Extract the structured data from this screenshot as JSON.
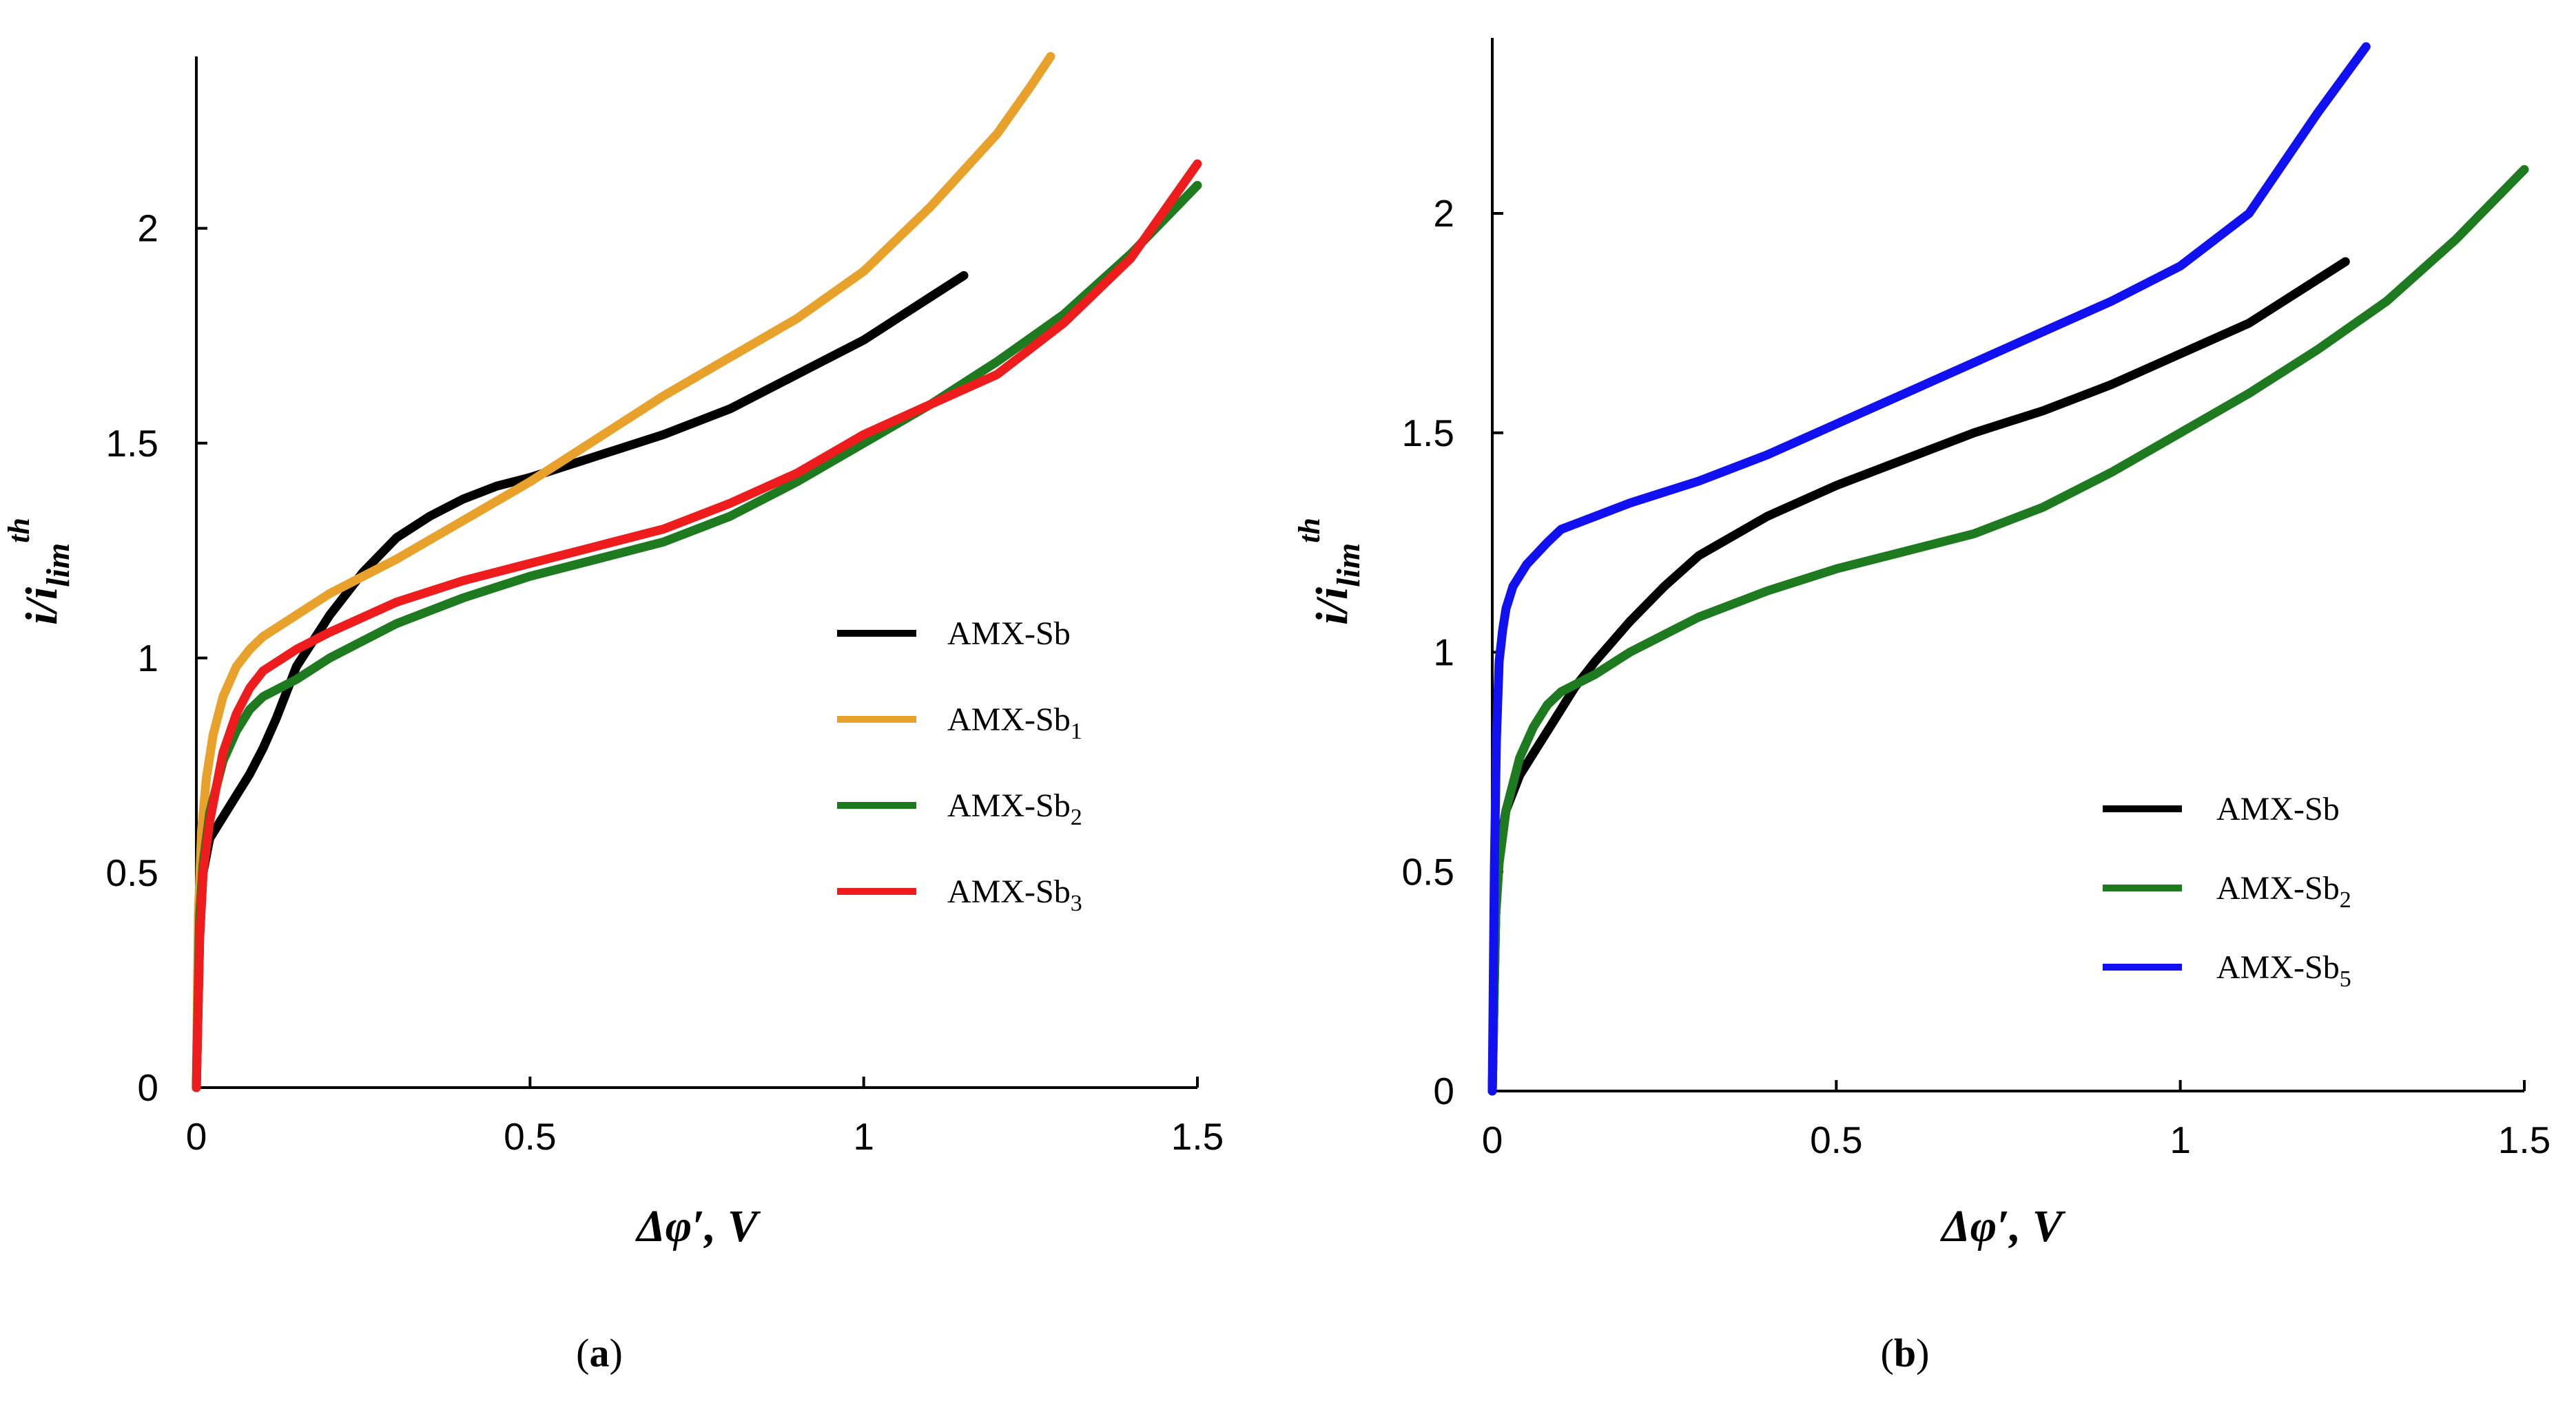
{
  "chart_data": [
    {
      "type": "line",
      "panel": "a",
      "caption": "(a)",
      "xlabel": "Δφ′, V",
      "ylabel": "i/ilim th",
      "ylabel_parts": {
        "main": "i/i",
        "sub": "lim",
        "sup": "th"
      },
      "xlim": [
        0,
        1.5
      ],
      "ylim": [
        0,
        2.4
      ],
      "xticks": [
        0,
        0.5,
        1,
        1.5
      ],
      "xtick_labels": [
        "0",
        "0.5",
        "1",
        "1.5"
      ],
      "yticks": [
        0,
        0.5,
        1,
        1.5,
        2
      ],
      "ytick_labels": [
        "0",
        "0.5",
        "1",
        "1.5",
        "2"
      ],
      "legend_position": "right",
      "series": [
        {
          "name": "AMX-Sb",
          "base": "AMX-Sb",
          "subscript": "",
          "color": "#000000",
          "x": [
            0,
            0.005,
            0.01,
            0.02,
            0.04,
            0.06,
            0.08,
            0.1,
            0.12,
            0.15,
            0.2,
            0.25,
            0.3,
            0.35,
            0.4,
            0.45,
            0.5,
            0.6,
            0.7,
            0.8,
            0.9,
            1.0,
            1.05,
            1.1,
            1.15
          ],
          "y": [
            0,
            0.35,
            0.5,
            0.58,
            0.63,
            0.68,
            0.73,
            0.79,
            0.86,
            0.98,
            1.1,
            1.2,
            1.28,
            1.33,
            1.37,
            1.4,
            1.42,
            1.47,
            1.52,
            1.58,
            1.66,
            1.74,
            1.79,
            1.84,
            1.89
          ]
        },
        {
          "name": "AMX-Sb1",
          "base": "AMX-Sb",
          "subscript": "1",
          "color": "#E8A22B",
          "x": [
            0,
            0.003,
            0.008,
            0.015,
            0.025,
            0.04,
            0.06,
            0.08,
            0.1,
            0.15,
            0.2,
            0.3,
            0.4,
            0.5,
            0.6,
            0.7,
            0.8,
            0.9,
            1.0,
            1.1,
            1.2,
            1.25,
            1.28
          ],
          "y": [
            0,
            0.4,
            0.6,
            0.72,
            0.82,
            0.91,
            0.98,
            1.02,
            1.05,
            1.1,
            1.15,
            1.23,
            1.32,
            1.41,
            1.51,
            1.61,
            1.7,
            1.79,
            1.9,
            2.05,
            2.22,
            2.33,
            2.4
          ]
        },
        {
          "name": "AMX-Sb2",
          "base": "AMX-Sb",
          "subscript": "2",
          "color": "#1E7A1E",
          "x": [
            0,
            0.005,
            0.01,
            0.02,
            0.04,
            0.06,
            0.08,
            0.1,
            0.15,
            0.2,
            0.3,
            0.4,
            0.5,
            0.6,
            0.7,
            0.8,
            0.9,
            1.0,
            1.1,
            1.2,
            1.3,
            1.4,
            1.5
          ],
          "y": [
            0,
            0.4,
            0.52,
            0.64,
            0.76,
            0.83,
            0.88,
            0.91,
            0.95,
            1.0,
            1.08,
            1.14,
            1.19,
            1.23,
            1.27,
            1.33,
            1.41,
            1.5,
            1.59,
            1.69,
            1.8,
            1.94,
            2.1
          ]
        },
        {
          "name": "AMX-Sb3",
          "base": "AMX-Sb",
          "subscript": "3",
          "color": "#EE1C1C",
          "x": [
            0,
            0.005,
            0.01,
            0.02,
            0.04,
            0.06,
            0.08,
            0.1,
            0.15,
            0.2,
            0.3,
            0.4,
            0.5,
            0.6,
            0.7,
            0.8,
            0.9,
            1.0,
            1.1,
            1.2,
            1.3,
            1.4,
            1.5
          ],
          "y": [
            0,
            0.35,
            0.5,
            0.62,
            0.78,
            0.87,
            0.93,
            0.97,
            1.02,
            1.06,
            1.13,
            1.18,
            1.22,
            1.26,
            1.3,
            1.36,
            1.43,
            1.52,
            1.59,
            1.66,
            1.78,
            1.93,
            2.15
          ]
        }
      ]
    },
    {
      "type": "line",
      "panel": "b",
      "caption": "(b)",
      "xlabel": "Δφ′, V",
      "ylabel": "i/ilim th",
      "ylabel_parts": {
        "main": "i/i",
        "sub": "lim",
        "sup": "th"
      },
      "xlim": [
        0,
        1.5
      ],
      "ylim": [
        0,
        2.4
      ],
      "xticks": [
        0,
        0.5,
        1,
        1.5
      ],
      "xtick_labels": [
        "0",
        "0.5",
        "1",
        "1.5"
      ],
      "yticks": [
        0,
        0.5,
        1,
        1.5,
        2
      ],
      "ytick_labels": [
        "0",
        "0.5",
        "1",
        "1.5",
        "2"
      ],
      "legend_position": "bottom-right",
      "series": [
        {
          "name": "AMX-Sb",
          "base": "AMX-Sb",
          "subscript": "",
          "color": "#000000",
          "x": [
            0,
            0.005,
            0.01,
            0.02,
            0.04,
            0.06,
            0.08,
            0.1,
            0.12,
            0.15,
            0.2,
            0.25,
            0.3,
            0.4,
            0.5,
            0.6,
            0.7,
            0.8,
            0.9,
            1.0,
            1.1,
            1.2,
            1.24
          ],
          "y": [
            0,
            0.4,
            0.55,
            0.64,
            0.72,
            0.77,
            0.82,
            0.87,
            0.92,
            0.98,
            1.07,
            1.15,
            1.22,
            1.31,
            1.38,
            1.44,
            1.5,
            1.55,
            1.61,
            1.68,
            1.75,
            1.85,
            1.89
          ]
        },
        {
          "name": "AMX-Sb2",
          "base": "AMX-Sb",
          "subscript": "2",
          "color": "#1E7A1E",
          "x": [
            0,
            0.005,
            0.01,
            0.02,
            0.04,
            0.06,
            0.08,
            0.1,
            0.15,
            0.2,
            0.3,
            0.4,
            0.5,
            0.6,
            0.7,
            0.8,
            0.9,
            1.0,
            1.1,
            1.2,
            1.3,
            1.4,
            1.5
          ],
          "y": [
            0,
            0.4,
            0.52,
            0.64,
            0.76,
            0.83,
            0.88,
            0.91,
            0.95,
            1.0,
            1.08,
            1.14,
            1.19,
            1.23,
            1.27,
            1.33,
            1.41,
            1.5,
            1.59,
            1.69,
            1.8,
            1.94,
            2.1
          ]
        },
        {
          "name": "AMX-Sb5",
          "base": "AMX-Sb",
          "subscript": "5",
          "color": "#1010F0",
          "x": [
            0,
            0.003,
            0.006,
            0.01,
            0.015,
            0.02,
            0.03,
            0.05,
            0.08,
            0.1,
            0.15,
            0.2,
            0.3,
            0.4,
            0.5,
            0.6,
            0.7,
            0.8,
            0.9,
            1.0,
            1.1,
            1.2,
            1.27
          ],
          "y": [
            0,
            0.5,
            0.8,
            0.98,
            1.05,
            1.1,
            1.15,
            1.2,
            1.25,
            1.28,
            1.31,
            1.34,
            1.39,
            1.45,
            1.52,
            1.59,
            1.66,
            1.73,
            1.8,
            1.88,
            2.0,
            2.23,
            2.38
          ]
        }
      ]
    }
  ]
}
